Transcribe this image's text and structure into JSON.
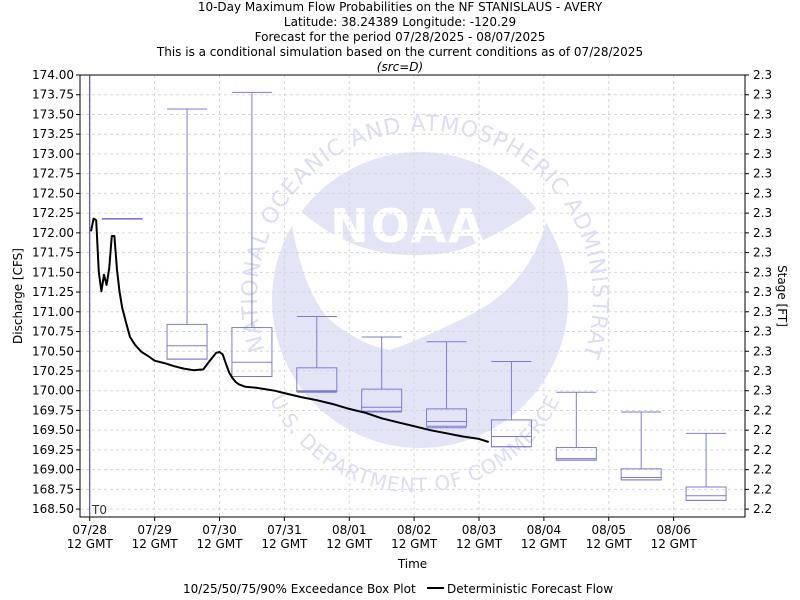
{
  "titles": {
    "line1": "10-Day Maximum Flow Probabilities on the NF STANISLAUS - AVERY",
    "line2": "Latitude: 38.24389 Longitude: -120.29",
    "line3": "Forecast for the period 07/28/2025 - 08/07/2025",
    "line4": "This is a conditional simulation based on the current conditions as of 07/28/2025",
    "line5": "(src=D)"
  },
  "watermark": {
    "logo_text": "NOAA",
    "ring_text": "NATIONAL OCEANIC AND ATMOSPHERIC ADMINISTRATION",
    "bottom_text": "U.S. DEPARTMENT OF COMMERCE"
  },
  "chart_data": {
    "type": "box",
    "x_unit": "days since 07/28 12 GMT",
    "xlabel": "Time",
    "ylabel": "Discharge [CFS]",
    "ylabel_right": "Stage [FT]",
    "ylim": [
      168.4,
      174.0
    ],
    "xlim": [
      -0.15,
      10.1
    ],
    "grid": true,
    "t0_label": "T0",
    "t0_x": 0,
    "x_ticks": [
      {
        "x": 0,
        "label": "07/28",
        "label2": "12 GMT"
      },
      {
        "x": 1,
        "label": "07/29",
        "label2": "12 GMT"
      },
      {
        "x": 2,
        "label": "07/30",
        "label2": "12 GMT"
      },
      {
        "x": 3,
        "label": "07/31",
        "label2": "12 GMT"
      },
      {
        "x": 4,
        "label": "08/01",
        "label2": "12 GMT"
      },
      {
        "x": 5,
        "label": "08/02",
        "label2": "12 GMT"
      },
      {
        "x": 6,
        "label": "08/03",
        "label2": "12 GMT"
      },
      {
        "x": 7,
        "label": "08/04",
        "label2": "12 GMT"
      },
      {
        "x": 8,
        "label": "08/05",
        "label2": "12 GMT"
      },
      {
        "x": 9,
        "label": "08/06",
        "label2": "12 GMT"
      }
    ],
    "y_ticks": [
      {
        "value": 174.0,
        "left": "174.00",
        "right": "2.3"
      },
      {
        "value": 173.75,
        "left": "173.75",
        "right": "2.3"
      },
      {
        "value": 173.5,
        "left": "173.50",
        "right": "2.3"
      },
      {
        "value": 173.25,
        "left": "173.25",
        "right": "2.3"
      },
      {
        "value": 173.0,
        "left": "173.00",
        "right": "2.3"
      },
      {
        "value": 172.75,
        "left": "172.75",
        "right": "2.3"
      },
      {
        "value": 172.5,
        "left": "172.50",
        "right": "2.3"
      },
      {
        "value": 172.25,
        "left": "172.25",
        "right": "2.3"
      },
      {
        "value": 172.0,
        "left": "172.00",
        "right": "2.3"
      },
      {
        "value": 171.75,
        "left": "171.75",
        "right": "2.3"
      },
      {
        "value": 171.5,
        "left": "171.50",
        "right": "2.3"
      },
      {
        "value": 171.25,
        "left": "171.25",
        "right": "2.3"
      },
      {
        "value": 171.0,
        "left": "171.00",
        "right": "2.3"
      },
      {
        "value": 170.75,
        "left": "170.75",
        "right": "2.3"
      },
      {
        "value": 170.5,
        "left": "170.50",
        "right": "2.3"
      },
      {
        "value": 170.25,
        "left": "170.25",
        "right": "2.3"
      },
      {
        "value": 170.0,
        "left": "170.00",
        "right": "2.3"
      },
      {
        "value": 169.75,
        "left": "169.75",
        "right": "2.2"
      },
      {
        "value": 169.5,
        "left": "169.50",
        "right": "2.2"
      },
      {
        "value": 169.25,
        "left": "169.25",
        "right": "2.2"
      },
      {
        "value": 169.0,
        "left": "169.00",
        "right": "2.2"
      },
      {
        "value": 168.75,
        "left": "168.75",
        "right": "2.2"
      },
      {
        "value": 168.5,
        "left": "168.50",
        "right": "2.2"
      }
    ],
    "boxes": [
      {
        "x": 0.5,
        "p10": 172.18,
        "p25": 172.18,
        "p50": 172.18,
        "p75": 172.18,
        "p90": 172.18
      },
      {
        "x": 1.5,
        "p10": 170.4,
        "p25": 170.4,
        "p50": 170.57,
        "p75": 170.84,
        "p90": 173.57
      },
      {
        "x": 2.5,
        "p10": 170.18,
        "p25": 170.18,
        "p50": 170.36,
        "p75": 170.8,
        "p90": 173.78
      },
      {
        "x": 3.5,
        "p10": 169.98,
        "p25": 169.99,
        "p50": 170.0,
        "p75": 170.29,
        "p90": 170.94
      },
      {
        "x": 4.5,
        "p10": 169.73,
        "p25": 169.74,
        "p50": 169.79,
        "p75": 170.02,
        "p90": 170.68
      },
      {
        "x": 5.5,
        "p10": 169.53,
        "p25": 169.55,
        "p50": 169.61,
        "p75": 169.77,
        "p90": 170.62
      },
      {
        "x": 6.5,
        "p10": 169.29,
        "p25": 169.29,
        "p50": 169.42,
        "p75": 169.63,
        "p90": 170.37
      },
      {
        "x": 7.5,
        "p10": 169.12,
        "p25": 169.12,
        "p50": 169.14,
        "p75": 169.28,
        "p90": 169.98
      },
      {
        "x": 8.5,
        "p10": 168.87,
        "p25": 168.87,
        "p50": 168.9,
        "p75": 169.01,
        "p90": 169.73
      },
      {
        "x": 9.5,
        "p10": 168.61,
        "p25": 168.61,
        "p50": 168.67,
        "p75": 168.78,
        "p90": 169.46
      }
    ],
    "series": [
      {
        "name": "Deterministic Forecast Flow",
        "x": [
          0.02,
          0.06,
          0.1,
          0.14,
          0.18,
          0.22,
          0.26,
          0.3,
          0.34,
          0.38,
          0.42,
          0.46,
          0.5,
          0.56,
          0.62,
          0.7,
          0.8,
          0.9,
          1.0,
          1.15,
          1.3,
          1.45,
          1.6,
          1.75,
          1.85,
          1.95,
          2.0,
          2.05,
          2.1,
          2.15,
          2.2,
          2.25,
          2.3,
          2.4,
          2.55,
          2.7,
          2.85,
          3.0,
          3.25,
          3.5,
          3.75,
          4.0,
          4.25,
          4.5,
          4.75,
          5.0,
          5.25,
          5.5,
          5.75,
          6.0,
          6.15
        ],
        "y": [
          172.02,
          172.18,
          172.16,
          171.5,
          171.26,
          171.47,
          171.34,
          171.55,
          171.96,
          171.96,
          171.53,
          171.25,
          171.05,
          170.86,
          170.68,
          170.58,
          170.49,
          170.44,
          170.38,
          170.35,
          170.31,
          170.28,
          170.26,
          170.27,
          170.38,
          170.48,
          170.49,
          170.46,
          170.34,
          170.23,
          170.16,
          170.11,
          170.08,
          170.05,
          170.04,
          170.02,
          170.0,
          169.97,
          169.92,
          169.88,
          169.83,
          169.77,
          169.72,
          169.65,
          169.6,
          169.55,
          169.5,
          169.46,
          169.42,
          169.39,
          169.35
        ]
      }
    ],
    "legend": {
      "position": "bottom",
      "box_label": "10/25/50/75/90% Exceedance Box Plot",
      "line_label": "Deterministic Forecast Flow"
    },
    "colors": {
      "box": "#7b7bd6",
      "line": "#000000",
      "t0_line": "#3030b0",
      "grid": "#d6d6d6",
      "watermark": "#dcdcf5"
    }
  }
}
